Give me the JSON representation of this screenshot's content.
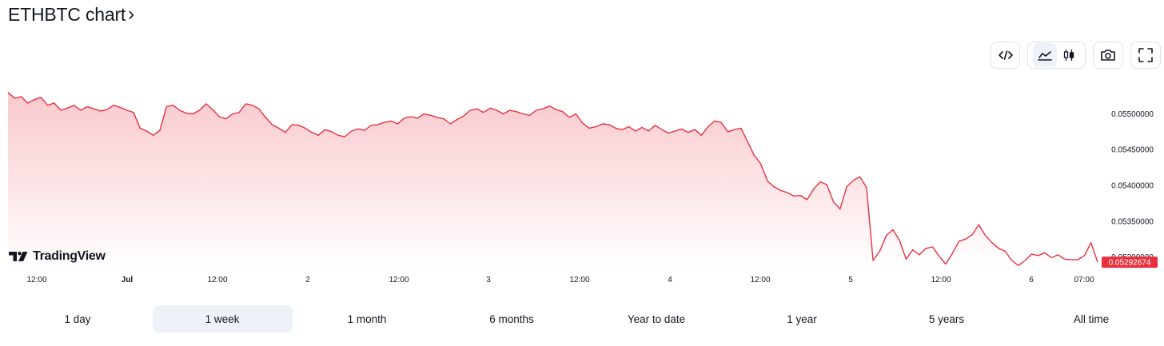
{
  "header": {
    "title": "ETHBTC chart",
    "chevron": "›"
  },
  "toolbar": {
    "embed_icon": "code-icon",
    "line_icon": "line-chart-icon",
    "candle_icon": "candlestick-icon",
    "camera_icon": "camera-icon",
    "fullscreen_icon": "fullscreen-icon"
  },
  "logo": {
    "text": "TradingView"
  },
  "ranges": [
    {
      "label": "1 day",
      "active": false
    },
    {
      "label": "1 week",
      "active": true
    },
    {
      "label": "1 month",
      "active": false
    },
    {
      "label": "6 months",
      "active": false
    },
    {
      "label": "Year to date",
      "active": false
    },
    {
      "label": "1 year",
      "active": false
    },
    {
      "label": "5 years",
      "active": false
    },
    {
      "label": "All time",
      "active": false
    }
  ],
  "colors": {
    "line": "#e8313f",
    "area_top": "#f9c6cb",
    "badge": "#e8313f",
    "active_range": "#eef1f8"
  },
  "chart_data": {
    "type": "area",
    "x_ticks": [
      "12:00",
      "Jul",
      "12:00",
      "2",
      "12:00",
      "3",
      "12:00",
      "4",
      "12:00",
      "5",
      "12:00",
      "6",
      "07:00"
    ],
    "y_ticks": [
      "0.05500000",
      "0.05450000",
      "0.05400000",
      "0.05350000",
      "0.05300000"
    ],
    "y_tick_values": [
      0.055,
      0.0545,
      0.054,
      0.0535,
      0.053
    ],
    "ylim": [
      0.05285,
      0.05553
    ],
    "last_value": "0.05292674",
    "grid": false,
    "values": [
      0.0553,
      0.05522,
      0.05524,
      0.05515,
      0.0552,
      0.05523,
      0.05512,
      0.05515,
      0.05505,
      0.05508,
      0.05512,
      0.05505,
      0.0551,
      0.05507,
      0.05504,
      0.05506,
      0.05512,
      0.05509,
      0.05505,
      0.05502,
      0.0548,
      0.05476,
      0.0547,
      0.05477,
      0.0551,
      0.05512,
      0.05505,
      0.05501,
      0.055,
      0.05505,
      0.05514,
      0.05506,
      0.05496,
      0.05493,
      0.055,
      0.05502,
      0.05514,
      0.05512,
      0.05507,
      0.05495,
      0.05485,
      0.0548,
      0.05474,
      0.05485,
      0.05484,
      0.0548,
      0.05474,
      0.0547,
      0.05478,
      0.05475,
      0.0547,
      0.05468,
      0.05476,
      0.05479,
      0.05477,
      0.05484,
      0.05485,
      0.05488,
      0.0549,
      0.05486,
      0.05494,
      0.05496,
      0.05494,
      0.055,
      0.05498,
      0.05495,
      0.05493,
      0.05486,
      0.05492,
      0.05497,
      0.05505,
      0.05507,
      0.05502,
      0.05508,
      0.05505,
      0.055,
      0.05505,
      0.05503,
      0.055,
      0.05498,
      0.05505,
      0.05507,
      0.05511,
      0.05506,
      0.05503,
      0.05495,
      0.055,
      0.05487,
      0.0548,
      0.05482,
      0.05486,
      0.05485,
      0.0548,
      0.05478,
      0.05482,
      0.05476,
      0.05481,
      0.05476,
      0.05484,
      0.05478,
      0.05473,
      0.05476,
      0.05479,
      0.05474,
      0.05478,
      0.0547,
      0.05482,
      0.0549,
      0.05488,
      0.05475,
      0.05478,
      0.0548,
      0.05461,
      0.05442,
      0.0543,
      0.05406,
      0.05398,
      0.05393,
      0.0539,
      0.05385,
      0.05386,
      0.0538,
      0.05395,
      0.05405,
      0.05401,
      0.05377,
      0.05367,
      0.05398,
      0.05407,
      0.05412,
      0.05397,
      0.05295,
      0.05308,
      0.0533,
      0.05338,
      0.05323,
      0.05297,
      0.0531,
      0.05303,
      0.05312,
      0.05314,
      0.05301,
      0.0529,
      0.05305,
      0.05322,
      0.05325,
      0.05331,
      0.05345,
      0.0533,
      0.0532,
      0.05312,
      0.05308,
      0.05295,
      0.05288,
      0.05295,
      0.05304,
      0.05302,
      0.05306,
      0.05299,
      0.05303,
      0.05297,
      0.05296,
      0.05296,
      0.05302,
      0.0532,
      0.05292674
    ]
  }
}
